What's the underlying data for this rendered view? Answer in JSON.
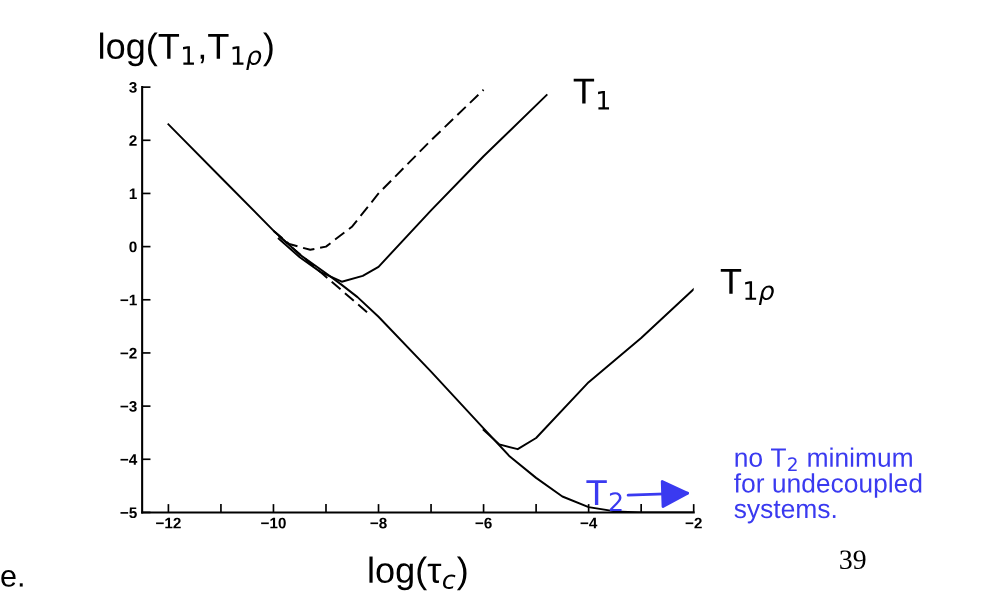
{
  "chart_data": {
    "type": "line",
    "xlabel": "log(τ$_{c}$)",
    "ylabel": "log(T$_{1}$,T$_{1ρ}$)",
    "xlim": [
      -12.5,
      -2
    ],
    "ylim": [
      -5,
      3
    ],
    "xticks": [
      -12,
      {
        "value": -11,
        "label": null
      },
      -10,
      {
        "value": -9,
        "label": null
      },
      -8,
      {
        "value": -7,
        "label": null
      },
      -6,
      {
        "value": -5,
        "label": null
      },
      -4,
      {
        "value": -3,
        "label": null
      },
      -2
    ],
    "yticks": [
      -5,
      -4,
      -3,
      -2,
      -1,
      0,
      1,
      2,
      3
    ],
    "grid": false,
    "legend": false,
    "marker": "none",
    "series": [
      {
        "color": "#000000",
        "line_style": "solid",
        "x": [
          -12,
          -11,
          -10,
          -9.5,
          -9,
          -8.7,
          -8.4,
          -8,
          -7,
          -6,
          -5.5,
          -5,
          -4.5,
          -4,
          -3.5,
          -3,
          -2
        ],
        "values": [
          2.3,
          1.3,
          0.3,
          -0.15,
          -0.5,
          -0.72,
          -0.95,
          -1.32,
          -2.35,
          -3.42,
          -3.95,
          -4.35,
          -4.7,
          -4.9,
          -4.98,
          -5.0,
          -5.0
        ]
      },
      {
        "name": "T$_{1}$",
        "color": "#000000",
        "line_style": "solid",
        "x": [
          -9.9,
          -9.5,
          -9.1,
          -8.7,
          -8.3,
          -8,
          -7,
          -6,
          -4.8
        ],
        "values": [
          0.15,
          -0.2,
          -0.48,
          -0.66,
          -0.55,
          -0.38,
          0.68,
          1.7,
          2.85
        ]
      },
      {
        "color": "#000000",
        "line_style": "dashed",
        "x": [
          -10,
          -9.7,
          -9.3,
          -9,
          -8.5,
          -8,
          -7,
          -6
        ],
        "values": [
          0.3,
          0.05,
          -0.06,
          0.0,
          0.38,
          1.0,
          2.0,
          2.95
        ]
      },
      {
        "color": "#000000",
        "line_style": "dashed",
        "x": [
          -9.9,
          -8.2
        ],
        "values": [
          0.2,
          -1.25
        ]
      },
      {
        "name": "T$_{1ρ}$",
        "color": "#000000",
        "line_style": "solid",
        "x": [
          -6,
          -5.7,
          -5.35,
          -5,
          -4,
          -3,
          -2
        ],
        "values": [
          -3.45,
          -3.72,
          -3.81,
          -3.6,
          -2.55,
          -1.72,
          -0.8
        ]
      }
    ],
    "annotations": [
      "T$_{2}$",
      "no T$_{2}$ minimum\nfor undecoupled\nsystems.",
      "39",
      "e."
    ]
  }
}
